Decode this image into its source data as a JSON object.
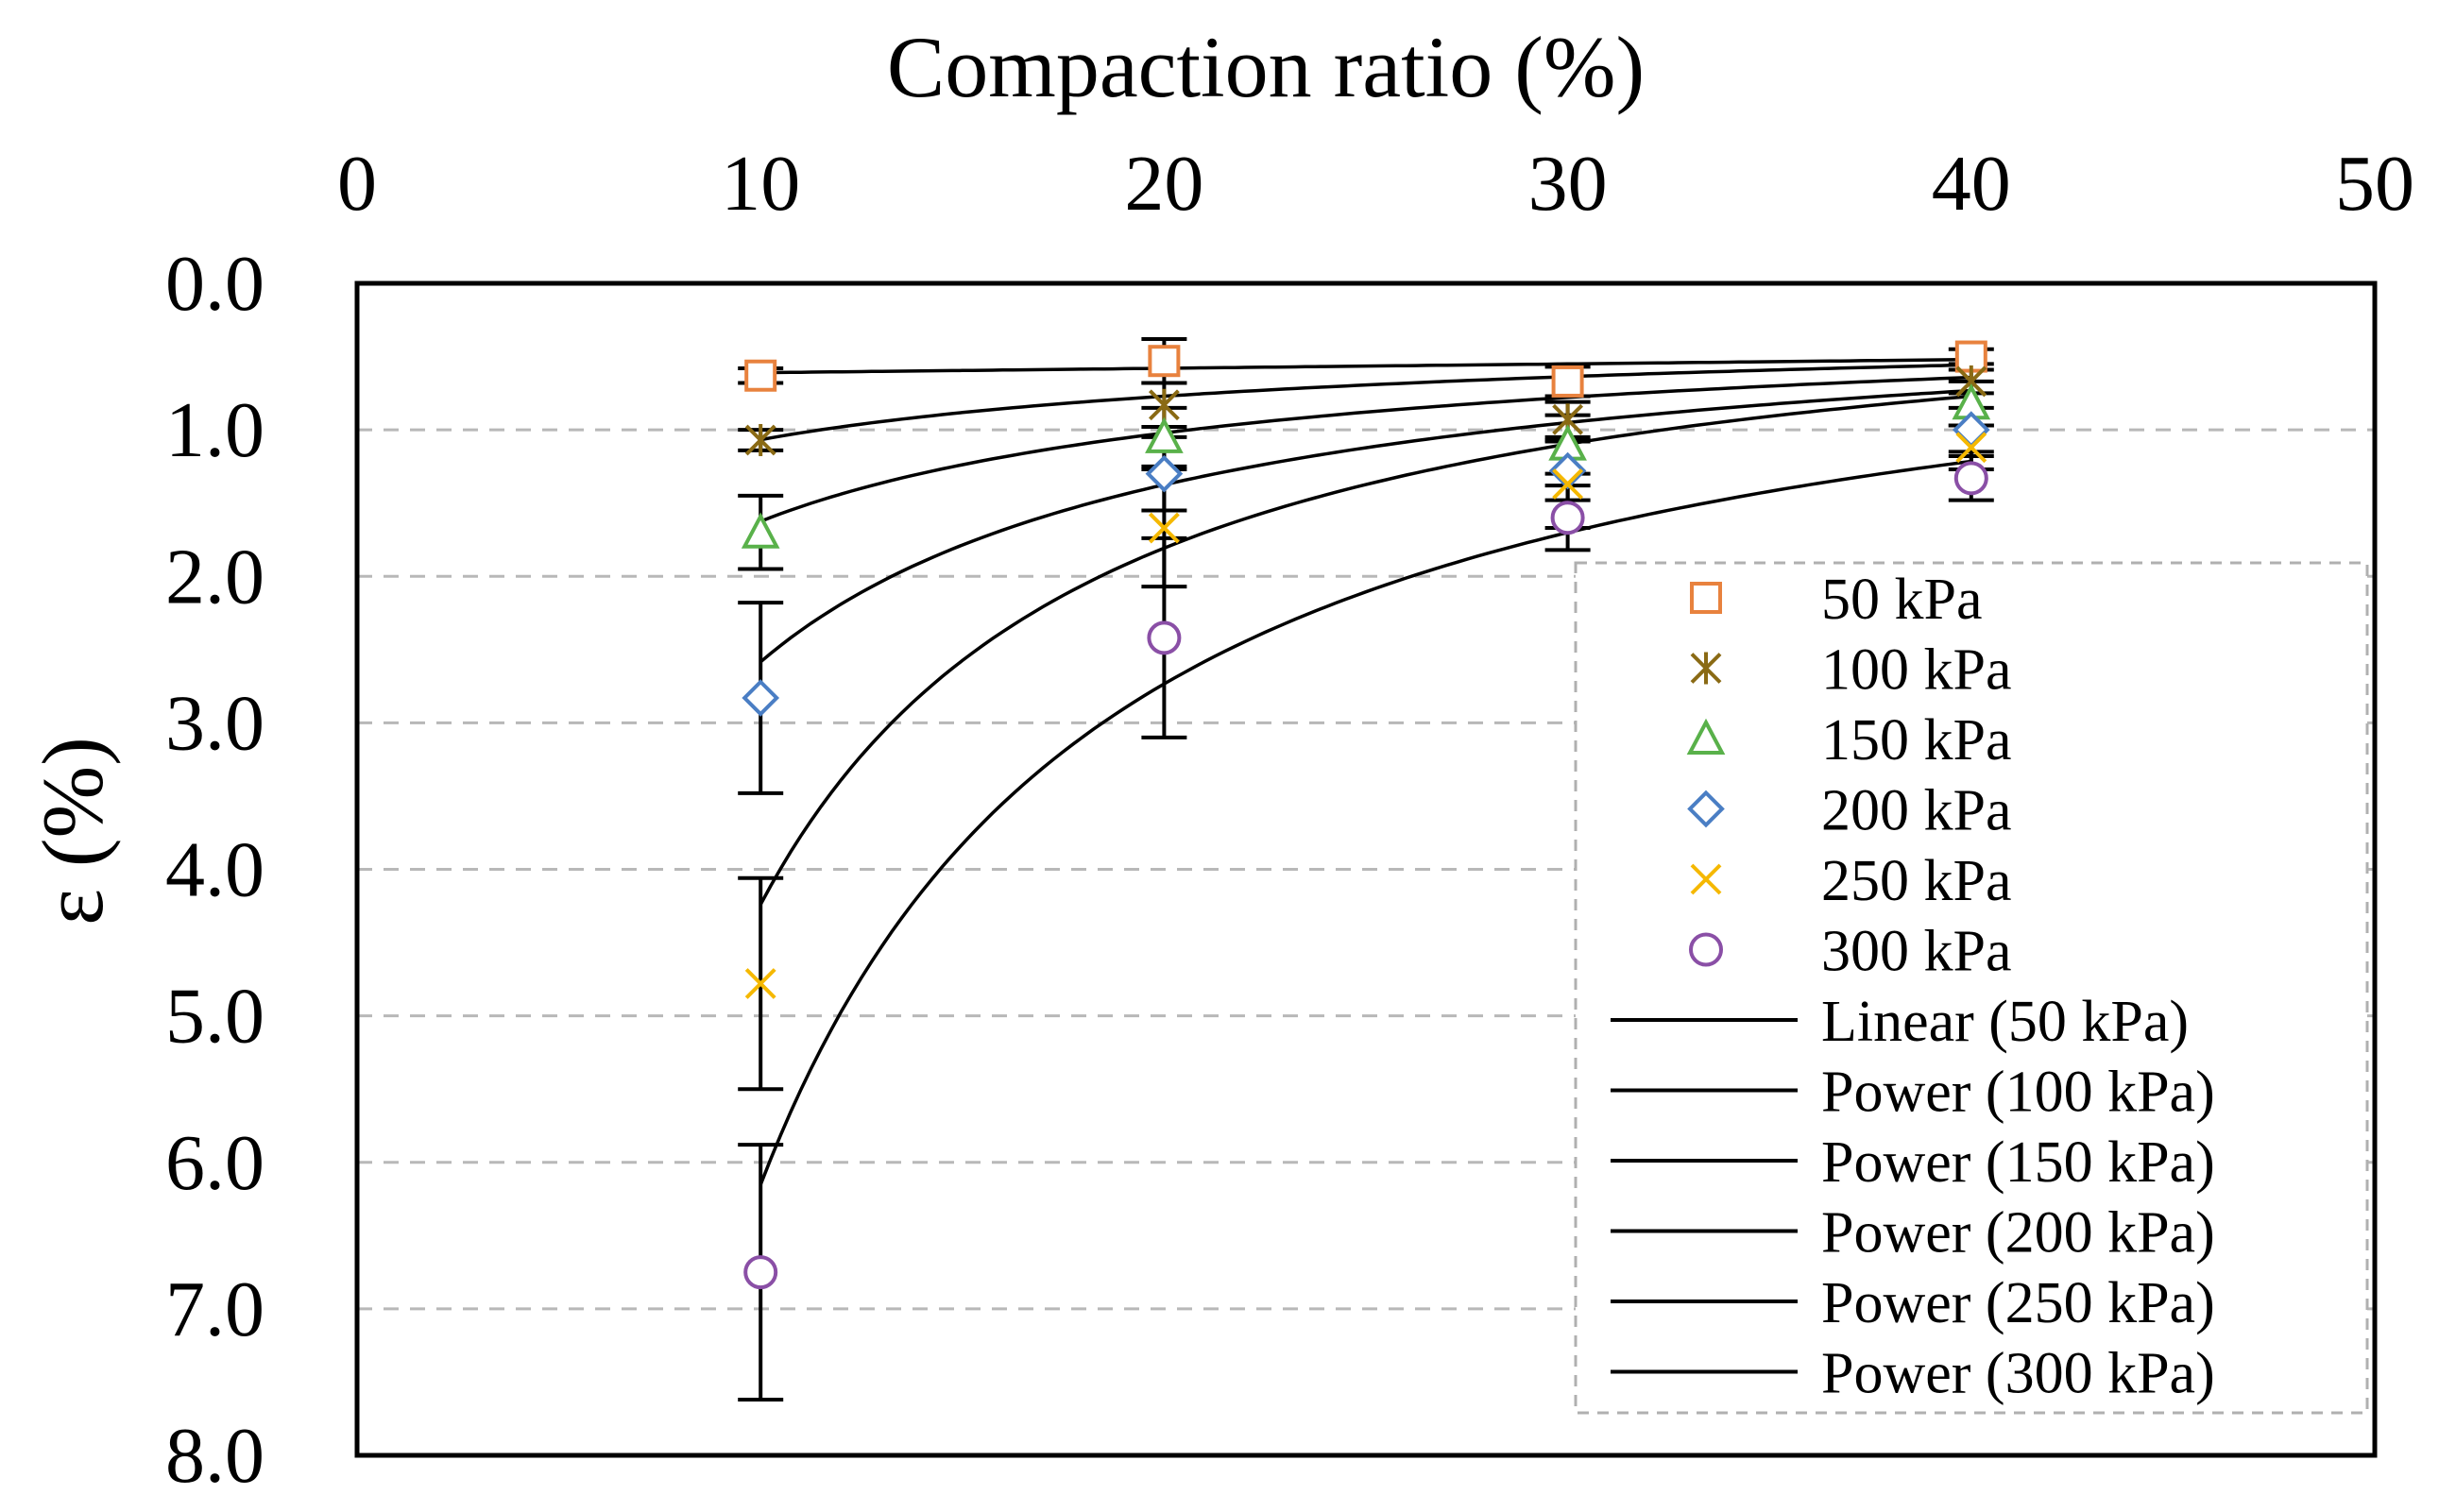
{
  "chart_data": {
    "type": "scatter",
    "title": "Compaction ratio (%)",
    "xlabel": "Compaction ratio (%)",
    "ylabel": "ε (%)",
    "xlim": [
      0,
      50
    ],
    "ylim": [
      0,
      8
    ],
    "y_inverted": true,
    "x_axis_position": "top",
    "grid": "horizontal dashed",
    "x_ticks": [
      "0",
      "10",
      "20",
      "30",
      "40",
      "50"
    ],
    "y_ticks": [
      "0.0",
      "1.0",
      "2.0",
      "3.0",
      "4.0",
      "5.0",
      "6.0",
      "7.0",
      "8.0"
    ],
    "legend_position": "right",
    "series": [
      {
        "name": "50 kPa",
        "marker": "square",
        "color": "#E8823E",
        "x": [
          10,
          20,
          30,
          40
        ],
        "y": [
          0.63,
          0.53,
          0.67,
          0.5
        ],
        "error": [
          0.05,
          0.15,
          0.1,
          0.05
        ],
        "fit": {
          "name": "Linear (50 kPa)",
          "kind": "linear",
          "a": 0.64,
          "b": -0.003
        }
      },
      {
        "name": "100 kPa",
        "marker": "asterisk",
        "color": "#8A6A14",
        "x": [
          10,
          20,
          30,
          40
        ],
        "y": [
          1.07,
          0.83,
          0.93,
          0.67
        ],
        "error": [
          0.07,
          0.15,
          0.12,
          0.08
        ],
        "fit": {
          "name": "Power (100 kPa)",
          "kind": "power",
          "a": 3.15,
          "b": -0.47
        }
      },
      {
        "name": "150 kPa",
        "marker": "triangle",
        "color": "#59B14A",
        "x": [
          10,
          20,
          30,
          40
        ],
        "y": [
          1.7,
          1.05,
          1.1,
          0.82
        ],
        "error": [
          0.25,
          0.2,
          0.2,
          0.15
        ],
        "fit": {
          "name": "Power (150 kPa)",
          "kind": "power",
          "a": 7.6,
          "b": -0.67
        }
      },
      {
        "name": "200 kPa",
        "marker": "diamond",
        "color": "#4A7EC4",
        "x": [
          10,
          20,
          30,
          40
        ],
        "y": [
          2.83,
          1.3,
          1.28,
          1.0
        ],
        "error": [
          0.65,
          0.25,
          0.2,
          0.15
        ],
        "fit": {
          "name": "Power (200 kPa)",
          "kind": "power",
          "a": 21.0,
          "b": -0.91
        }
      },
      {
        "name": "250 kPa",
        "marker": "x",
        "color": "#F5B800",
        "x": [
          10,
          20,
          30,
          40
        ],
        "y": [
          4.78,
          1.67,
          1.37,
          1.12
        ],
        "error": [
          0.72,
          0.4,
          0.3,
          0.15
        ],
        "fit": {
          "name": "Power (250 kPa)",
          "kind": "power",
          "a": 72.0,
          "b": -1.23
        }
      },
      {
        "name": "300 kPa",
        "marker": "circle",
        "color": "#8A4FA6",
        "x": [
          10,
          20,
          30,
          40
        ],
        "y": [
          6.75,
          2.42,
          1.6,
          1.33
        ],
        "error": [
          0.87,
          0.68,
          0.22,
          0.15
        ],
        "fit": {
          "name": "Power (300 kPa)",
          "kind": "power",
          "a": 91.0,
          "b": -1.17
        }
      }
    ]
  }
}
